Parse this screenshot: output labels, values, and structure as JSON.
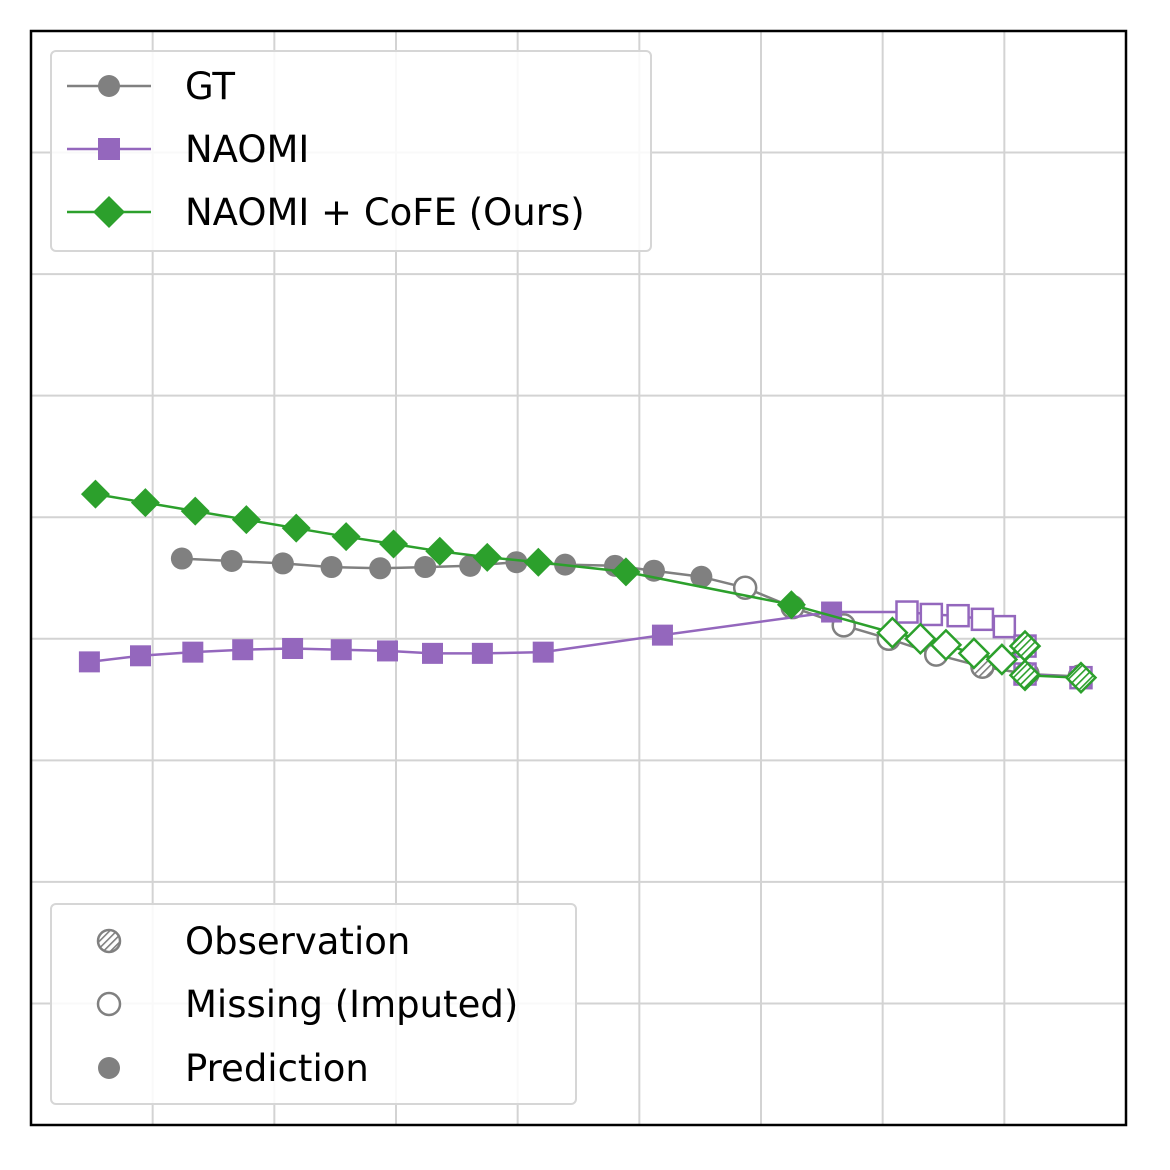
{
  "chart_data": {
    "type": "line",
    "title": "",
    "xlabel": "",
    "ylabel": "",
    "xlim": [
      0,
      9
    ],
    "ylim": [
      0,
      9
    ],
    "grid": true,
    "ticks_labeled": false,
    "series": [
      {
        "name": "GT",
        "color": "#808080",
        "marker": "circle",
        "points": [
          {
            "x": 1.24,
            "y": 4.66,
            "state": "prediction"
          },
          {
            "x": 1.65,
            "y": 4.64,
            "state": "prediction"
          },
          {
            "x": 2.07,
            "y": 4.62,
            "state": "prediction"
          },
          {
            "x": 2.47,
            "y": 4.59,
            "state": "prediction"
          },
          {
            "x": 2.87,
            "y": 4.58,
            "state": "prediction"
          },
          {
            "x": 3.24,
            "y": 4.59,
            "state": "prediction"
          },
          {
            "x": 3.61,
            "y": 4.6,
            "state": "prediction"
          },
          {
            "x": 3.99,
            "y": 4.63,
            "state": "prediction"
          },
          {
            "x": 4.39,
            "y": 4.61,
            "state": "prediction"
          },
          {
            "x": 4.8,
            "y": 4.6,
            "state": "prediction"
          },
          {
            "x": 5.12,
            "y": 4.56,
            "state": "prediction"
          },
          {
            "x": 5.51,
            "y": 4.51,
            "state": "prediction"
          },
          {
            "x": 5.87,
            "y": 4.42,
            "state": "missing"
          },
          {
            "x": 6.26,
            "y": 4.26,
            "state": "missing"
          },
          {
            "x": 6.68,
            "y": 4.11,
            "state": "missing"
          },
          {
            "x": 7.05,
            "y": 4.0,
            "state": "missing"
          },
          {
            "x": 7.44,
            "y": 3.87,
            "state": "missing"
          },
          {
            "x": 7.82,
            "y": 3.77,
            "state": "observation"
          },
          {
            "x": 8.19,
            "y": 3.71,
            "state": "observation"
          },
          {
            "x": 8.62,
            "y": 3.69,
            "state": "observation"
          }
        ]
      },
      {
        "name": "NAOMI",
        "color": "#9467bd",
        "marker": "square",
        "points": [
          {
            "x": 0.48,
            "y": 3.81,
            "state": "prediction"
          },
          {
            "x": 0.9,
            "y": 3.86,
            "state": "prediction"
          },
          {
            "x": 1.33,
            "y": 3.89,
            "state": "prediction"
          },
          {
            "x": 1.74,
            "y": 3.91,
            "state": "prediction"
          },
          {
            "x": 2.15,
            "y": 3.92,
            "state": "prediction"
          },
          {
            "x": 2.55,
            "y": 3.91,
            "state": "prediction"
          },
          {
            "x": 2.93,
            "y": 3.9,
            "state": "prediction"
          },
          {
            "x": 3.3,
            "y": 3.88,
            "state": "prediction"
          },
          {
            "x": 3.71,
            "y": 3.88,
            "state": "prediction"
          },
          {
            "x": 4.21,
            "y": 3.89,
            "state": "prediction"
          },
          {
            "x": 5.19,
            "y": 4.03,
            "state": "prediction"
          },
          {
            "x": 6.58,
            "y": 4.22,
            "state": "prediction"
          },
          {
            "x": 7.2,
            "y": 4.22,
            "state": "missing"
          },
          {
            "x": 7.4,
            "y": 4.2,
            "state": "missing"
          },
          {
            "x": 7.62,
            "y": 4.19,
            "state": "missing"
          },
          {
            "x": 7.82,
            "y": 4.16,
            "state": "missing"
          },
          {
            "x": 8.0,
            "y": 4.1,
            "state": "missing"
          },
          {
            "x": 8.17,
            "y": 3.94,
            "state": "observation"
          },
          {
            "x": 8.17,
            "y": 3.71,
            "state": "observation"
          },
          {
            "x": 8.63,
            "y": 3.68,
            "state": "observation"
          }
        ]
      },
      {
        "name": "NAOMI + CoFE (Ours)",
        "color": "#2ca02c",
        "marker": "diamond",
        "points": [
          {
            "x": 0.53,
            "y": 5.19,
            "state": "prediction"
          },
          {
            "x": 0.94,
            "y": 5.12,
            "state": "prediction"
          },
          {
            "x": 1.35,
            "y": 5.05,
            "state": "prediction"
          },
          {
            "x": 1.77,
            "y": 4.98,
            "state": "prediction"
          },
          {
            "x": 2.18,
            "y": 4.91,
            "state": "prediction"
          },
          {
            "x": 2.59,
            "y": 4.84,
            "state": "prediction"
          },
          {
            "x": 2.98,
            "y": 4.78,
            "state": "prediction"
          },
          {
            "x": 3.36,
            "y": 4.72,
            "state": "prediction"
          },
          {
            "x": 3.75,
            "y": 4.67,
            "state": "prediction"
          },
          {
            "x": 4.17,
            "y": 4.63,
            "state": "prediction"
          },
          {
            "x": 4.89,
            "y": 4.55,
            "state": "prediction"
          },
          {
            "x": 6.25,
            "y": 4.28,
            "state": "prediction"
          },
          {
            "x": 7.08,
            "y": 4.05,
            "state": "missing"
          },
          {
            "x": 7.31,
            "y": 4.0,
            "state": "missing"
          },
          {
            "x": 7.52,
            "y": 3.95,
            "state": "missing"
          },
          {
            "x": 7.75,
            "y": 3.88,
            "state": "missing"
          },
          {
            "x": 7.98,
            "y": 3.83,
            "state": "missing"
          },
          {
            "x": 8.17,
            "y": 3.94,
            "state": "observation"
          },
          {
            "x": 8.17,
            "y": 3.7,
            "state": "observation"
          },
          {
            "x": 8.63,
            "y": 3.68,
            "state": "observation"
          }
        ]
      }
    ],
    "legends": [
      {
        "position": "upper-left",
        "entries": [
          "GT",
          "NAOMI",
          "NAOMI + CoFE (Ours)"
        ]
      },
      {
        "position": "lower-left",
        "entries": [
          "Observation",
          "Missing (Imputed)",
          "Prediction"
        ]
      }
    ]
  },
  "legend_series": {
    "gt": "GT",
    "naomi": "NAOMI",
    "cofe": "NAOMI + CoFE (Ours)"
  },
  "legend_states": {
    "observation": "Observation",
    "missing": "Missing (Imputed)",
    "prediction": "Prediction"
  }
}
